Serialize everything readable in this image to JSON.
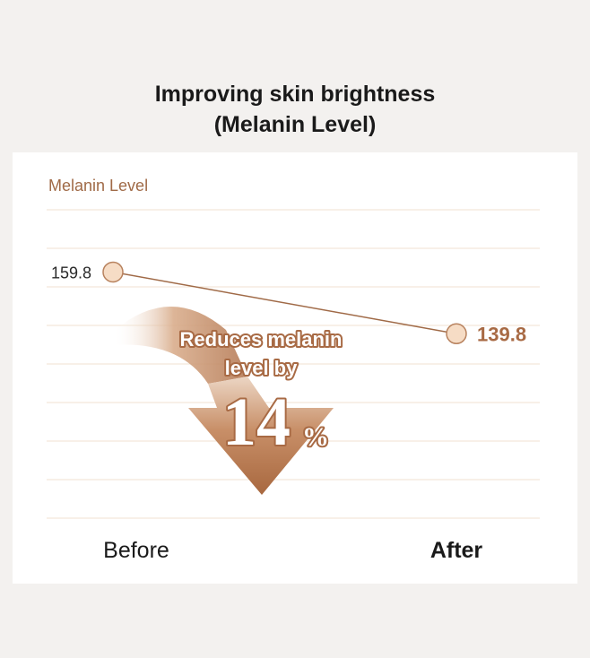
{
  "title_line1": "Improving skin brightness",
  "title_line2": "(Melanin Level)",
  "chart_data": {
    "type": "line",
    "ylabel": "Melanin Level",
    "categories": [
      "Before",
      "After"
    ],
    "series": [
      {
        "values": [
          159.8,
          139.8
        ]
      }
    ],
    "data_labels": [
      "159.8",
      "139.8"
    ],
    "ylim": [
      80,
      180
    ],
    "grid": true,
    "annotation": {
      "line1": "Reduces melanin",
      "line2": "level by",
      "number": "14",
      "unit": "%"
    }
  },
  "colors": {
    "background": "#f3f1ef",
    "card": "#ffffff",
    "grid": "#f0e2d0",
    "line": "#a06a47",
    "marker_fill": "#f6dcc5",
    "marker_stroke": "#b8825e",
    "accent": "#a86a44",
    "arrow_dark": "#b07550",
    "arrow_light": "#ead3bf"
  }
}
